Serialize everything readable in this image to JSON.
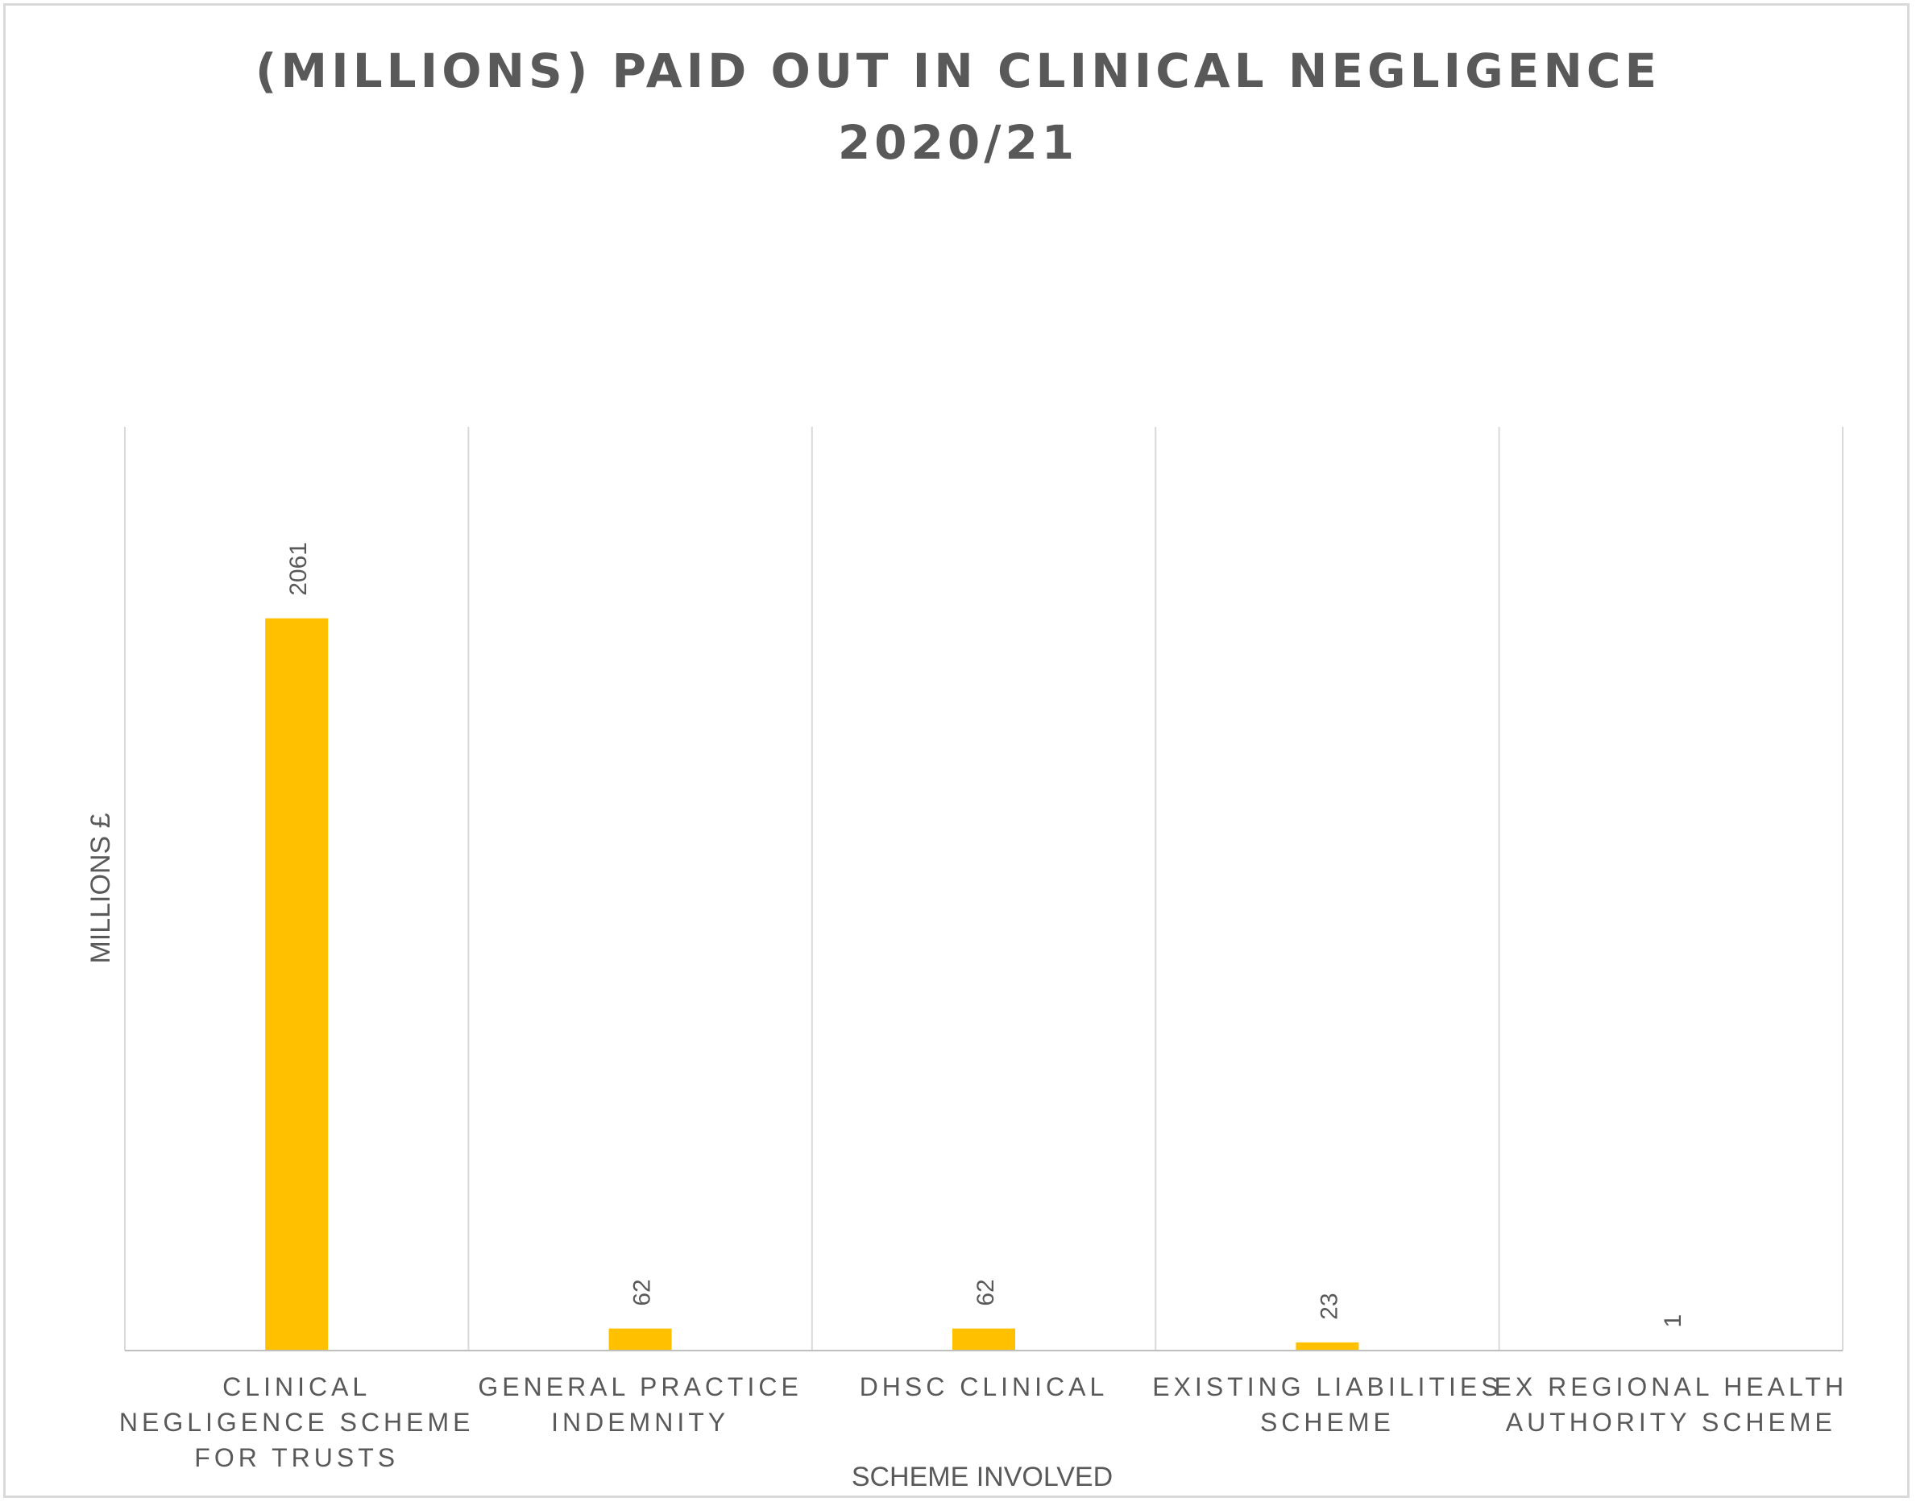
{
  "chart_data": {
    "type": "bar",
    "title": "(MILLIONS) PAID OUT IN CLINICAL NEGLIGENCE 2020/21",
    "title_lines": [
      "(MILLIONS) PAID OUT IN CLINICAL NEGLIGENCE",
      "2020/21"
    ],
    "xlabel": "SCHEME INVOLVED",
    "ylabel": "MILLIONS £",
    "categories": [
      "CLINICAL NEGLIGENCE SCHEME FOR TRUSTS",
      "GENERAL PRACTICE INDEMNITY",
      "DHSC CLINICAL",
      "EXISTING LIABILITIES SCHEME",
      "EX REGIONAL HEALTH AUTHORITY SCHEME"
    ],
    "category_lines": [
      [
        "CLINICAL",
        "NEGLIGENCE SCHEME",
        "FOR TRUSTS"
      ],
      [
        "GENERAL PRACTICE",
        "INDEMNITY"
      ],
      [
        "DHSC CLINICAL"
      ],
      [
        "EXISTING LIABILITIES",
        "SCHEME"
      ],
      [
        "EX REGIONAL HEALTH",
        "AUTHORITY SCHEME"
      ]
    ],
    "values": [
      2061,
      62,
      62,
      23,
      1
    ],
    "data_labels": [
      "2061",
      "62",
      "62",
      "23",
      "1"
    ],
    "ylim": [
      0,
      2600
    ],
    "grid": "vertical category separators",
    "legend": "none",
    "bar_color": "#ffc000",
    "title_color": "#595959",
    "label_color": "#595959",
    "gridline_color": "#d9d9d9",
    "axis_color": "#bfbfbf"
  }
}
